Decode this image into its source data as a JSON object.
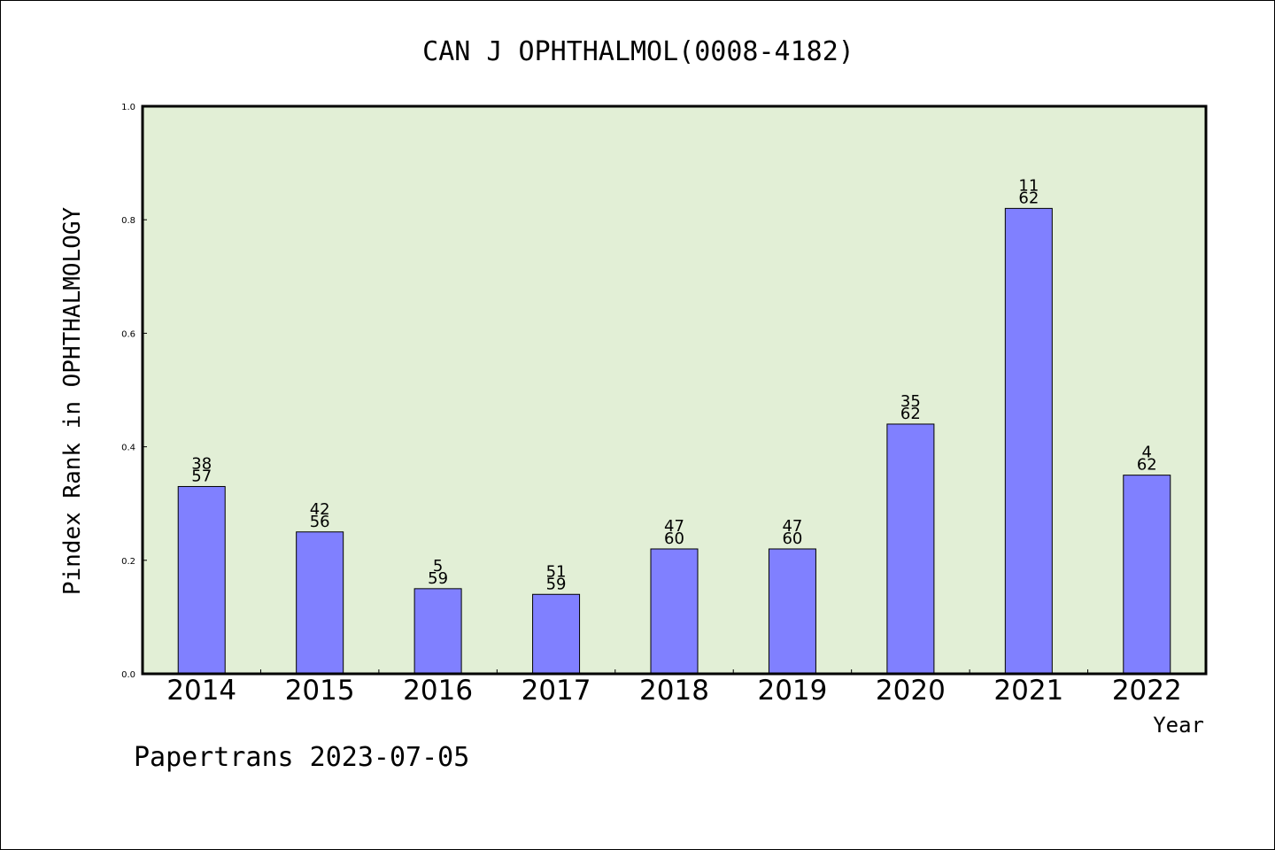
{
  "chart_data": {
    "type": "bar",
    "title": "CAN J OPHTHALMOL(0008-4182)",
    "xlabel": "Year",
    "ylabel": "Pindex Rank in OPHTHALMOLOGY",
    "categories": [
      "2014",
      "2015",
      "2016",
      "2017",
      "2018",
      "2019",
      "2020",
      "2021",
      "2022"
    ],
    "values": [
      0.33,
      0.25,
      0.15,
      0.14,
      0.22,
      0.22,
      0.44,
      0.82,
      0.35
    ],
    "labels_top": [
      "38",
      "42",
      "5",
      "51",
      "47",
      "47",
      "35",
      "11",
      "4"
    ],
    "labels_bottom": [
      "57",
      "56",
      "59",
      "59",
      "60",
      "60",
      "62",
      "62",
      "62"
    ],
    "ylim": [
      0,
      1.0
    ],
    "yticks": [
      "0.0",
      "0.2",
      "0.4",
      "0.6",
      "0.8",
      "1.0"
    ],
    "grid": false,
    "colors": {
      "plot_background": "#e2efd6",
      "bar": "#8080ff",
      "axis": "#000000"
    }
  },
  "footer": {
    "watermark": "Papertrans 2023-07-05"
  }
}
